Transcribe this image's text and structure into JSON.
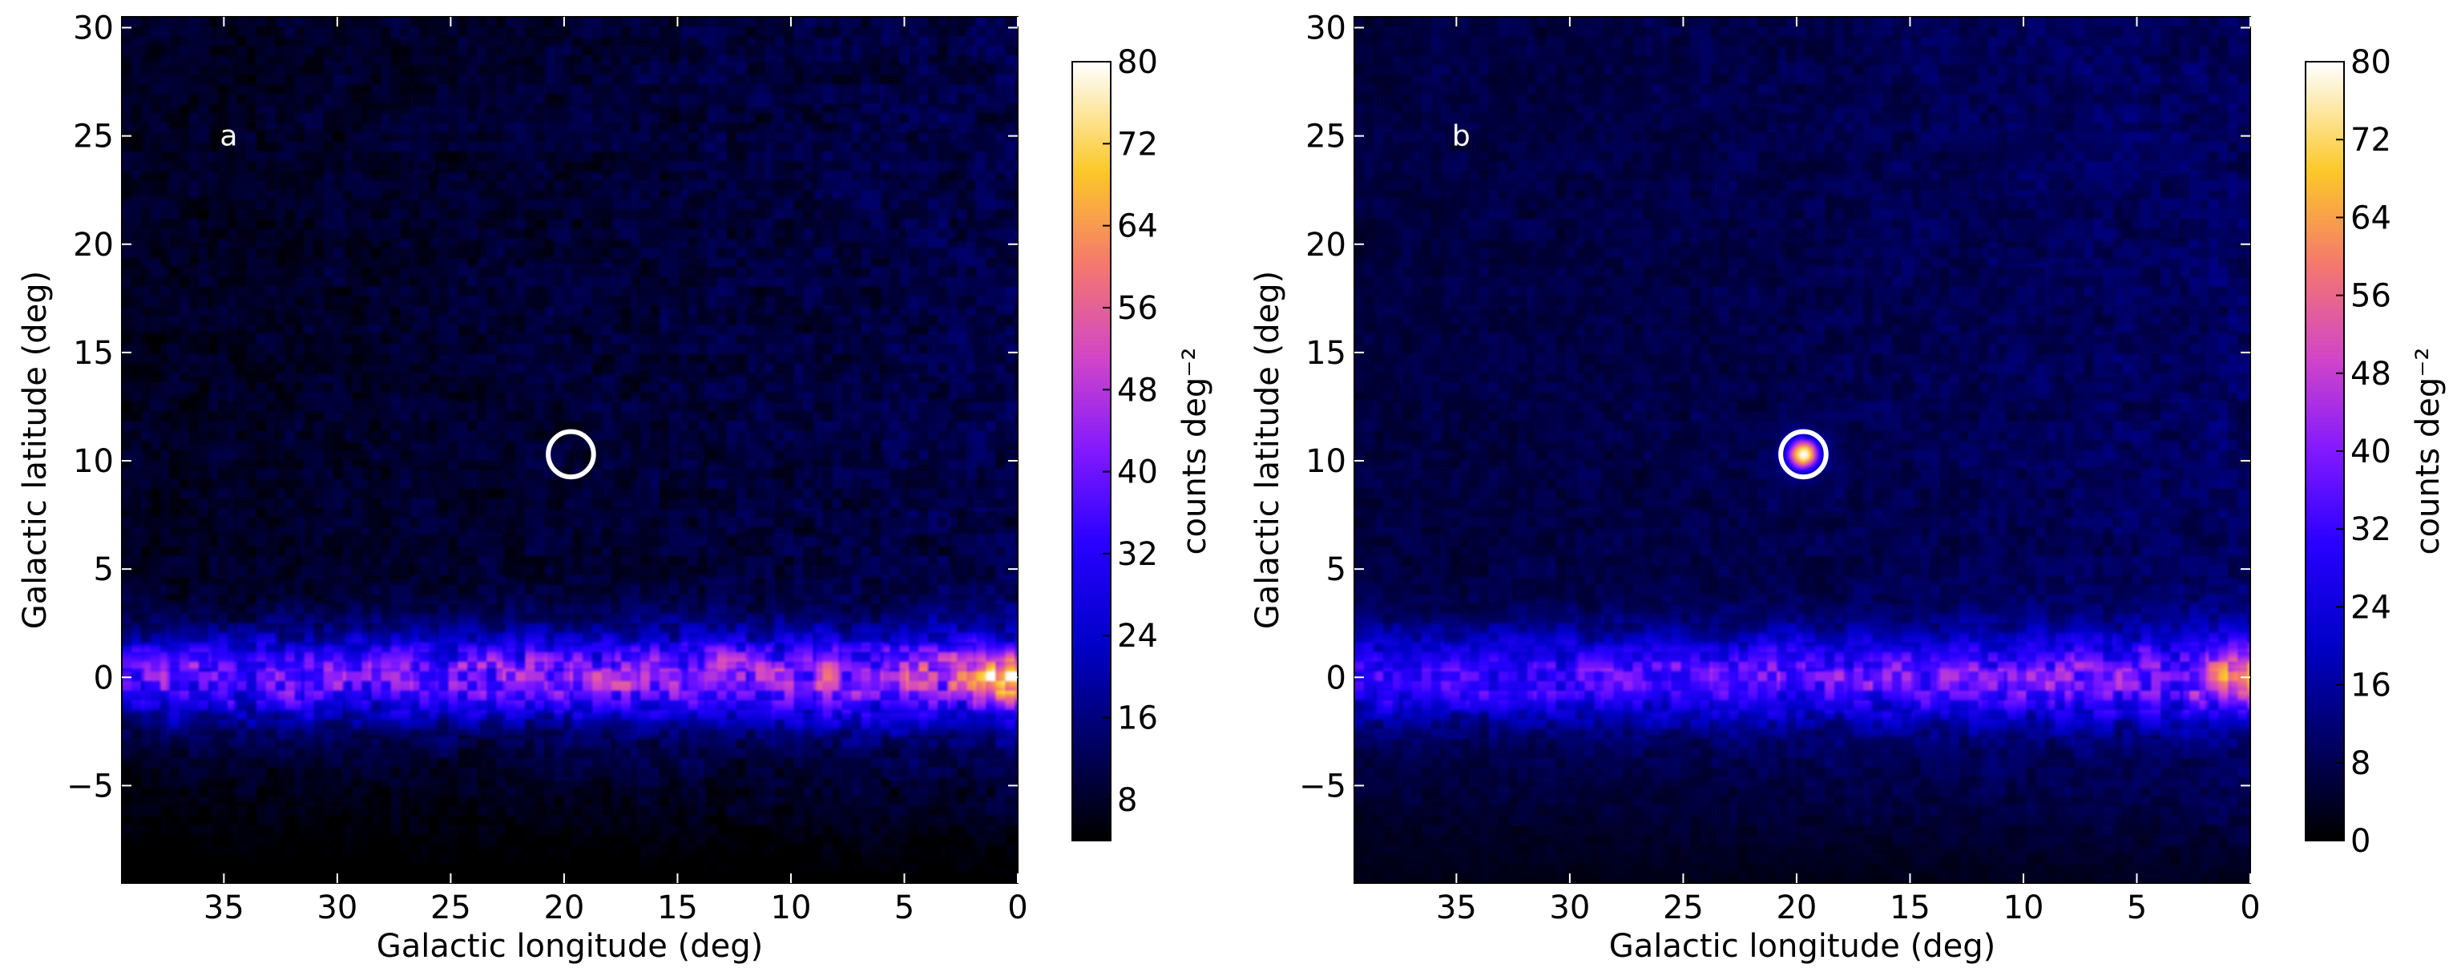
{
  "chart_data": [
    {
      "type": "heatmap",
      "panel_label": "a",
      "xlabel": "Galactic longitude (deg)",
      "ylabel": "Galactic latitude (deg)",
      "xlim": [
        39.5,
        0
      ],
      "ylim": [
        -9.5,
        30.5
      ],
      "xticks": [
        35,
        30,
        25,
        20,
        15,
        10,
        5,
        0
      ],
      "xtick_labels": [
        "35",
        "30",
        "25",
        "20",
        "15",
        "10",
        "5",
        "0"
      ],
      "yticks": [
        -5,
        0,
        5,
        10,
        15,
        20,
        25,
        30
      ],
      "ytick_labels": [
        "−5",
        "0",
        "5",
        "10",
        "15",
        "20",
        "25",
        "30"
      ],
      "colorbar": {
        "label": "counts deg⁻²",
        "range": [
          4,
          80
        ],
        "ticks": [
          8,
          16,
          24,
          32,
          40,
          48,
          56,
          64,
          72,
          80
        ],
        "tick_labels": [
          "8",
          "16",
          "24",
          "32",
          "40",
          "48",
          "56",
          "64",
          "72",
          "80"
        ],
        "colormap": "gnuplot2"
      },
      "circle_marker": {
        "l": 19.7,
        "b": 10.3,
        "radius_deg": 1.0,
        "color": "#ffffff"
      },
      "features": {
        "plane_latitude_deg": 0,
        "plane_width_deg": 2.0,
        "plane_peak_counts": 45,
        "galactic_center_peak_counts": 80,
        "halo_background_counts": 5,
        "point_source": null
      }
    },
    {
      "type": "heatmap",
      "panel_label": "b",
      "xlabel": "Galactic longitude (deg)",
      "ylabel": "Galactic latitude (deg)",
      "xlim": [
        39.5,
        0
      ],
      "ylim": [
        -9.5,
        30.5
      ],
      "xticks": [
        35,
        30,
        25,
        20,
        15,
        10,
        5,
        0
      ],
      "xtick_labels": [
        "35",
        "30",
        "25",
        "20",
        "15",
        "10",
        "5",
        "0"
      ],
      "yticks": [
        -5,
        0,
        5,
        10,
        15,
        20,
        25,
        30
      ],
      "ytick_labels": [
        "−5",
        "0",
        "5",
        "10",
        "15",
        "20",
        "25",
        "30"
      ],
      "colorbar": {
        "label": "counts deg⁻²",
        "range": [
          0,
          80
        ],
        "ticks": [
          0,
          8,
          16,
          24,
          32,
          40,
          48,
          56,
          64,
          72,
          80
        ],
        "tick_labels": [
          "0",
          "8",
          "16",
          "24",
          "32",
          "40",
          "48",
          "56",
          "64",
          "72",
          "80"
        ],
        "colormap": "gnuplot2"
      },
      "circle_marker": {
        "l": 19.7,
        "b": 10.3,
        "radius_deg": 1.0,
        "color": "#ffffff"
      },
      "features": {
        "plane_latitude_deg": 0,
        "plane_width_deg": 2.0,
        "plane_peak_counts": 38,
        "galactic_center_peak_counts": 62,
        "halo_background_counts": 4,
        "point_source": {
          "l": 19.7,
          "b": 10.3,
          "peak_counts": 75
        }
      }
    }
  ]
}
